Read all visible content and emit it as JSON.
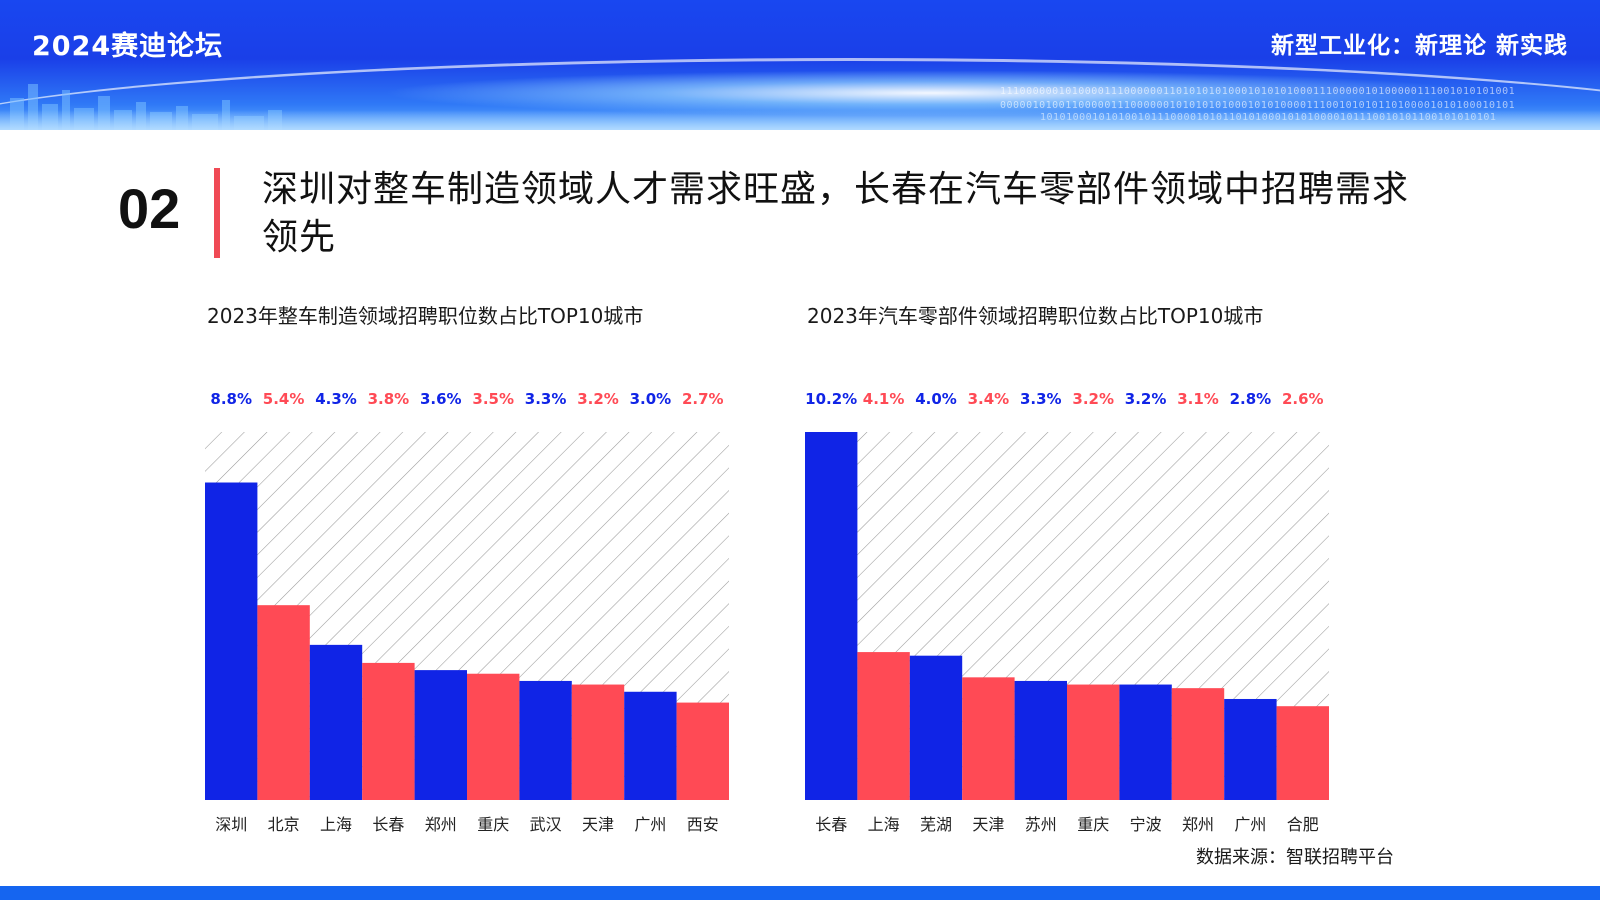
{
  "header": {
    "forum_title": "2024赛迪论坛",
    "slogan": "新型工业化：新理论 新实践"
  },
  "section": {
    "number": "02",
    "headline": "深圳对整车制造领域人才需求旺盛，长春在汽车零部件领域中招聘需求领先"
  },
  "colors": {
    "blue": "#1024e6",
    "red": "#ff4a55",
    "accent_bar": "#f04a55",
    "footer": "#1565f0"
  },
  "chart_data": [
    {
      "type": "bar",
      "title": "2023年整车制造领域招聘职位数占比TOP10城市",
      "categories": [
        "深圳",
        "北京",
        "上海",
        "长春",
        "郑州",
        "重庆",
        "武汉",
        "天津",
        "广州",
        "西安"
      ],
      "values": [
        8.8,
        5.4,
        4.3,
        3.8,
        3.6,
        3.5,
        3.3,
        3.2,
        3.0,
        2.7
      ],
      "labels": [
        "8.8%",
        "5.4%",
        "4.3%",
        "3.8%",
        "3.6%",
        "3.5%",
        "3.3%",
        "3.2%",
        "3.0%",
        "2.7%"
      ],
      "bar_colors": [
        "blue",
        "red",
        "blue",
        "red",
        "blue",
        "red",
        "blue",
        "red",
        "blue",
        "red"
      ],
      "unit": "%",
      "ylim": [
        0,
        10.2
      ],
      "grid": false,
      "background": "diagonal hatch"
    },
    {
      "type": "bar",
      "title": "2023年汽车零部件领域招聘职位数占比TOP10城市",
      "categories": [
        "长春",
        "上海",
        "芜湖",
        "天津",
        "苏州",
        "重庆",
        "宁波",
        "郑州",
        "广州",
        "合肥"
      ],
      "values": [
        10.2,
        4.1,
        4.0,
        3.4,
        3.3,
        3.2,
        3.2,
        3.1,
        2.8,
        2.6
      ],
      "labels": [
        "10.2%",
        "4.1%",
        "4.0%",
        "3.4%",
        "3.3%",
        "3.2%",
        "3.2%",
        "3.1%",
        "2.8%",
        "2.6%"
      ],
      "bar_colors": [
        "blue",
        "red",
        "blue",
        "red",
        "blue",
        "red",
        "blue",
        "red",
        "blue",
        "red"
      ],
      "unit": "%",
      "ylim": [
        0,
        10.2
      ],
      "grid": false,
      "background": "diagonal hatch"
    }
  ],
  "source": "数据来源：智联招聘平台"
}
